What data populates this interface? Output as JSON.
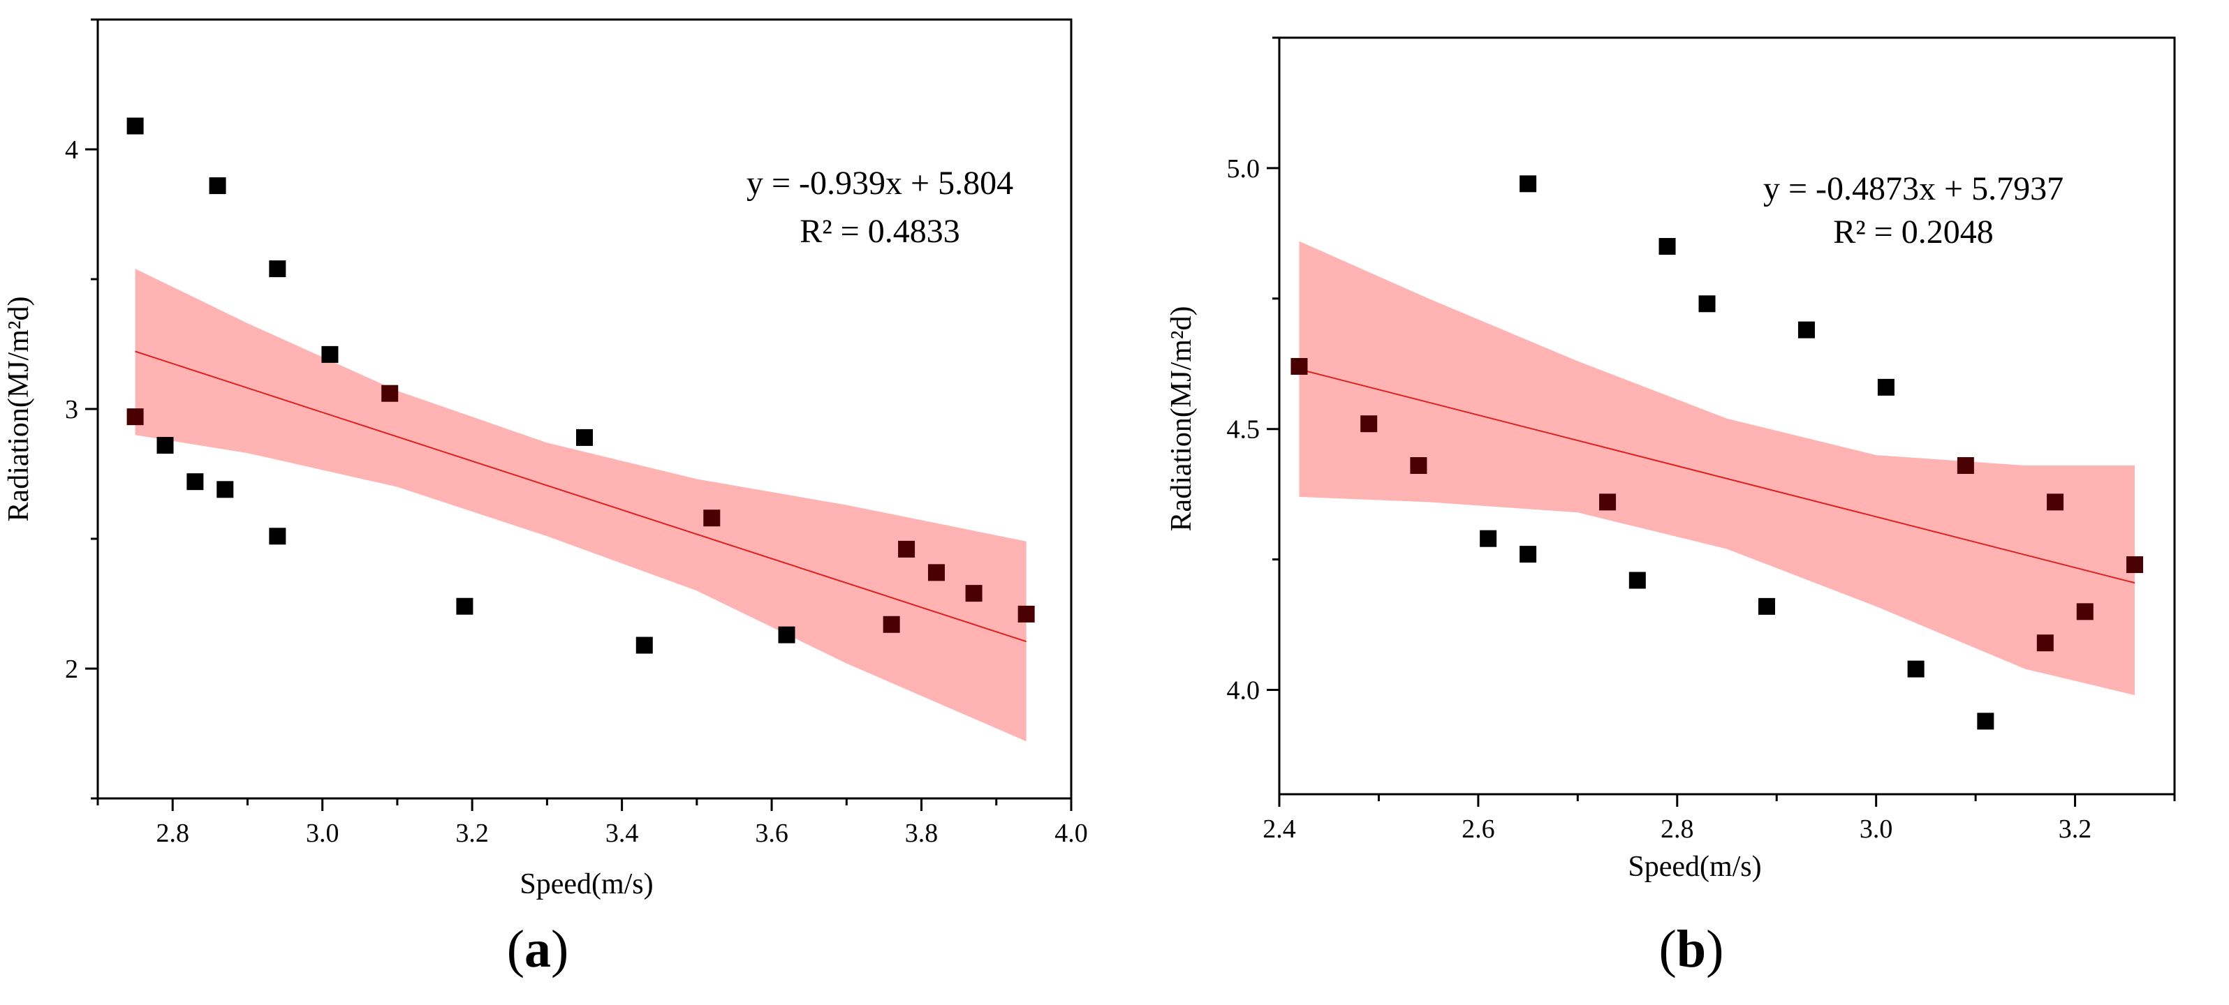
{
  "chart_data": [
    {
      "type": "scatter",
      "panel_label": "a",
      "xlabel": "Speed(m/s)",
      "ylabel": "Radiation(MJ/m²d)",
      "xlim": [
        2.7,
        4.0
      ],
      "ylim": [
        1.5,
        4.5
      ],
      "xticks": [
        2.8,
        3.0,
        3.2,
        3.4,
        3.6,
        3.8,
        4.0
      ],
      "xtick_labels": [
        "2.8",
        "3.0",
        "3.2",
        "3.4",
        "3.6",
        "3.8",
        "4.0"
      ],
      "yticks": [
        2,
        3,
        4
      ],
      "ytick_labels": [
        "2",
        "3",
        "4"
      ],
      "equation": "y = -0.939x + 5.804",
      "r2": "R² = 0.4833",
      "fit": {
        "slope": -0.939,
        "intercept": 5.804,
        "x_range": [
          2.75,
          3.94
        ]
      },
      "band": {
        "x": [
          2.75,
          2.9,
          3.1,
          3.3,
          3.5,
          3.7,
          3.94
        ],
        "upper": [
          3.54,
          3.33,
          3.07,
          2.87,
          2.73,
          2.63,
          2.49
        ],
        "lower": [
          2.9,
          2.83,
          2.7,
          2.51,
          2.3,
          2.02,
          1.72
        ]
      },
      "points": [
        [
          2.75,
          4.09
        ],
        [
          2.75,
          2.97
        ],
        [
          2.79,
          2.86
        ],
        [
          2.83,
          2.72
        ],
        [
          2.86,
          3.86
        ],
        [
          2.87,
          2.69
        ],
        [
          2.94,
          3.54
        ],
        [
          2.94,
          2.51
        ],
        [
          3.01,
          3.21
        ],
        [
          3.09,
          3.06
        ],
        [
          3.19,
          2.24
        ],
        [
          3.35,
          2.89
        ],
        [
          3.43,
          2.09
        ],
        [
          3.52,
          2.58
        ],
        [
          3.62,
          2.13
        ],
        [
          3.76,
          2.17
        ],
        [
          3.78,
          2.46
        ],
        [
          3.82,
          2.37
        ],
        [
          3.87,
          2.29
        ],
        [
          3.94,
          2.21
        ]
      ]
    },
    {
      "type": "scatter",
      "panel_label": "b",
      "xlabel": "Speed(m/s)",
      "ylabel": "Radiation(MJ/m²d)",
      "xlim": [
        2.4,
        3.3
      ],
      "ylim": [
        3.8,
        5.25
      ],
      "xticks": [
        2.4,
        2.6,
        2.8,
        3.0,
        3.2
      ],
      "xtick_labels": [
        "2.4",
        "2.6",
        "2.8",
        "3.0",
        "3.2"
      ],
      "yticks": [
        4.0,
        4.5,
        5.0
      ],
      "ytick_labels": [
        "4.0",
        "4.5",
        "5.0"
      ],
      "equation": "y = -0.4873x + 5.7937",
      "r2": "R² = 0.2048",
      "fit": {
        "slope": -0.4873,
        "intercept": 5.7937,
        "x_range": [
          2.42,
          3.26
        ]
      },
      "band": {
        "x": [
          2.42,
          2.55,
          2.7,
          2.85,
          3.0,
          3.15,
          3.26
        ],
        "upper": [
          4.86,
          4.75,
          4.63,
          4.52,
          4.45,
          4.43,
          4.43
        ],
        "lower": [
          4.37,
          4.36,
          4.34,
          4.27,
          4.16,
          4.04,
          3.99
        ]
      },
      "points": [
        [
          2.42,
          4.62
        ],
        [
          2.49,
          4.51
        ],
        [
          2.54,
          4.43
        ],
        [
          2.61,
          4.29
        ],
        [
          2.65,
          4.97
        ],
        [
          2.65,
          4.26
        ],
        [
          2.73,
          4.36
        ],
        [
          2.76,
          4.21
        ],
        [
          2.79,
          4.85
        ],
        [
          2.83,
          4.74
        ],
        [
          2.89,
          4.16
        ],
        [
          2.93,
          4.69
        ],
        [
          3.01,
          4.58
        ],
        [
          3.04,
          4.04
        ],
        [
          3.09,
          4.43
        ],
        [
          3.11,
          3.94
        ],
        [
          3.17,
          4.09
        ],
        [
          3.18,
          4.36
        ],
        [
          3.21,
          4.15
        ],
        [
          3.26,
          4.24
        ]
      ]
    }
  ],
  "colors": {
    "band": "#ffb3b3",
    "fit_line": "#e02020",
    "point_outside": "#000000",
    "point_inside": "#4a0000"
  }
}
